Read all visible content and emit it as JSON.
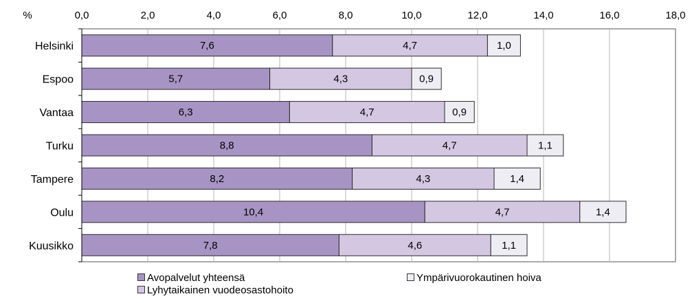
{
  "chart_data": {
    "type": "bar",
    "orientation": "horizontal",
    "stacked": true,
    "title": "",
    "xlabel": "%",
    "ylabel": "",
    "xlim": [
      0,
      18
    ],
    "xticks": [
      "0,0",
      "2,0",
      "4,0",
      "6,0",
      "8,0",
      "10,0",
      "12,0",
      "14,0",
      "16,0",
      "18,0"
    ],
    "grid": "vertical",
    "legend_position": "bottom",
    "categories": [
      "Helsinki",
      "Espoo",
      "Vantaa",
      "Turku",
      "Tampere",
      "Oulu",
      "Kuusikko"
    ],
    "series": [
      {
        "name": "Avopalvelut yhteensä",
        "color": "#a794c4",
        "values": [
          7.6,
          5.7,
          6.3,
          8.8,
          8.2,
          10.4,
          7.8
        ],
        "labels": [
          "7,6",
          "5,7",
          "6,3",
          "8,8",
          "8,2",
          "10,4",
          "7,8"
        ]
      },
      {
        "name": "Lyhytaikainen vuodeosastohoito",
        "color": "#d3c7e2",
        "values": [
          4.7,
          4.3,
          4.7,
          4.7,
          4.3,
          4.7,
          4.6
        ],
        "labels": [
          "4,7",
          "4,3",
          "4,7",
          "4,7",
          "4,3",
          "4,7",
          "4,6"
        ]
      },
      {
        "name": "Ympärivuorokautinen hoiva",
        "color": "#efedf4",
        "values": [
          1.0,
          0.9,
          0.9,
          1.1,
          1.4,
          1.4,
          1.1
        ],
        "labels": [
          "1,0",
          "0,9",
          "0,9",
          "1,1",
          "1,4",
          "1,4",
          "1,1"
        ]
      }
    ]
  }
}
